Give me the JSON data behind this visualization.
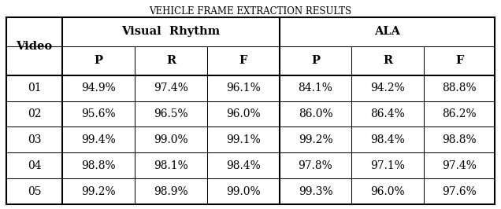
{
  "title": "Vehicle Frame Extraction Results",
  "row_header": "Video",
  "vr_label": "Visual  Rhythm",
  "ala_label": "ALA",
  "sub_headers": [
    "P",
    "R",
    "F",
    "P",
    "R",
    "F"
  ],
  "rows": [
    {
      "video": "01",
      "vals": [
        "94.9%",
        "97.4%",
        "96.1%",
        "84.1%",
        "94.2%",
        "88.8%"
      ]
    },
    {
      "video": "02",
      "vals": [
        "95.6%",
        "96.5%",
        "96.0%",
        "86.0%",
        "86.4%",
        "86.2%"
      ]
    },
    {
      "video": "03",
      "vals": [
        "99.4%",
        "99.0%",
        "99.1%",
        "99.2%",
        "98.4%",
        "98.8%"
      ]
    },
    {
      "video": "04",
      "vals": [
        "98.8%",
        "98.1%",
        "98.4%",
        "97.8%",
        "97.1%",
        "97.4%"
      ]
    },
    {
      "video": "05",
      "vals": [
        "99.2%",
        "98.9%",
        "99.0%",
        "99.3%",
        "96.0%",
        "97.6%"
      ]
    }
  ],
  "bg_color": "#ffffff",
  "border_color": "#000000",
  "title_fontsize": 8.5,
  "header_fontsize": 10.5,
  "cell_fontsize": 10.0,
  "fig_width": 6.36,
  "fig_height": 2.66,
  "dpi": 100
}
